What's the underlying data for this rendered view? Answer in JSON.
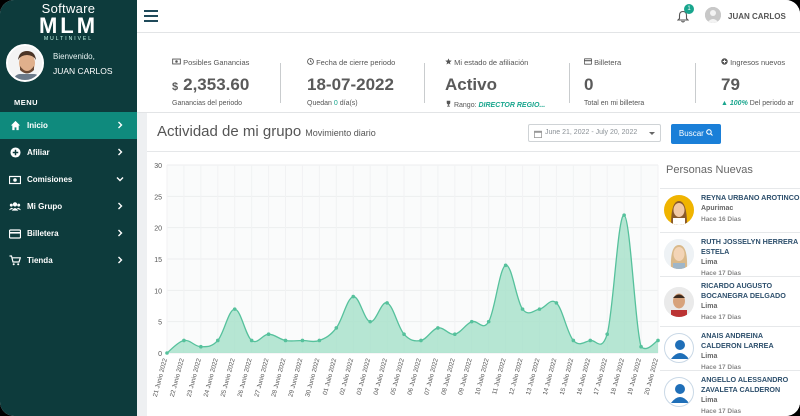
{
  "brand": {
    "line1": "Software",
    "line2": "MLM",
    "line3": "MULTINIVEL"
  },
  "profile": {
    "welcome": "Bienvenido,",
    "name": "JUAN CARLOS"
  },
  "menu": {
    "title": "MENU",
    "items": [
      {
        "label": "Inicio",
        "icon": "home-icon",
        "chevron": "right"
      },
      {
        "label": "Afiliar",
        "icon": "plus-circle-icon",
        "chevron": "right"
      },
      {
        "label": "Comisiones",
        "icon": "money-icon",
        "chevron": "down"
      },
      {
        "label": "Mi Grupo",
        "icon": "users-icon",
        "chevron": "right"
      },
      {
        "label": "Billetera",
        "icon": "card-icon",
        "chevron": "right"
      },
      {
        "label": "Tienda",
        "icon": "cart-icon",
        "chevron": "right"
      }
    ]
  },
  "topbar": {
    "notifications": "1",
    "user": "JUAN CARLOS"
  },
  "stats": {
    "ganancias": {
      "label": "Posibles Ganancias",
      "currency": "$",
      "value": "2,353.60",
      "sub": "Ganancias del periodo"
    },
    "cierre": {
      "label": "Fecha de cierre periodo",
      "value": "18-07-2022",
      "sub_pre": "Quedan",
      "sub_num": "0",
      "sub_post": "día(s)"
    },
    "estado": {
      "label": "Mi estado de afiliación",
      "value": "Activo",
      "rank_label": "Rango:",
      "rank": "DIRECTOR REGIO..."
    },
    "billetera": {
      "label": "Billetera",
      "value": "0",
      "sub": "Total en mi billetera"
    },
    "ingresos": {
      "label": "Ingresos nuevos",
      "value": "79",
      "pct": "100%",
      "sub": "Del periodo ar"
    }
  },
  "activity": {
    "title": "Actividad de mi grupo",
    "subtitle": "Movimiento diario",
    "date_range": "June 21, 2022 - July 20, 2022",
    "search_label": "Buscar"
  },
  "chart_data": {
    "type": "area",
    "x": [
      "21 Junio 2022",
      "22 Junio 2022",
      "23 Junio 2022",
      "24 Junio 2022",
      "25 Junio 2022",
      "26 Junio 2022",
      "27 Junio 2022",
      "28 Junio 2022",
      "29 Junio 2022",
      "30 Junio 2022",
      "01 Julio 2022",
      "02 Julio 2022",
      "03 Julio 2022",
      "04 Julio 2022",
      "05 Julio 2022",
      "06 Julio 2022",
      "07 Julio 2022",
      "08 Julio 2022",
      "09 Julio 2022",
      "10 Julio 2022",
      "11 Julio 2022",
      "12 Julio 2022",
      "13 Julio 2022",
      "14 Julio 2022",
      "15 Julio 2022",
      "16 Julio 2022",
      "17 Julio 2022",
      "18 Julio 2022",
      "19 Julio 2022",
      "20 Julio 2022"
    ],
    "values": [
      0,
      2,
      1,
      2,
      7,
      2,
      3,
      2,
      2,
      2,
      4,
      9,
      5,
      8,
      3,
      2,
      4,
      3,
      5,
      5,
      14,
      7,
      7,
      8,
      2,
      2,
      3,
      22,
      1,
      2
    ],
    "ylim": [
      0,
      30
    ],
    "yticks": [
      0,
      5,
      10,
      15,
      20,
      25,
      30
    ],
    "color": "#a9e2cb",
    "line_color": "#56c19c"
  },
  "persons": {
    "title": "Personas Nuevas",
    "items": [
      {
        "name": "REYNA URBANO AROTINCO",
        "city": "Apurimac",
        "time": "Hace 16 Dias"
      },
      {
        "name": "RUTH JOSSELYN HERRERA ESTELA",
        "city": "Lima",
        "time": "Hace 17 Dias"
      },
      {
        "name": "RICARDO AUGUSTO BOCANEGRA DELGADO",
        "city": "Lima",
        "time": "Hace 17 Dias"
      },
      {
        "name": "ANAIS ANDREINA CALDERON LARREA",
        "city": "Lima",
        "time": "Hace 17 Dias"
      },
      {
        "name": "ANGELLO ALESSANDRO ZAVALETA CALDERON",
        "city": "Lima",
        "time": "Hace 17 Dias"
      }
    ]
  }
}
